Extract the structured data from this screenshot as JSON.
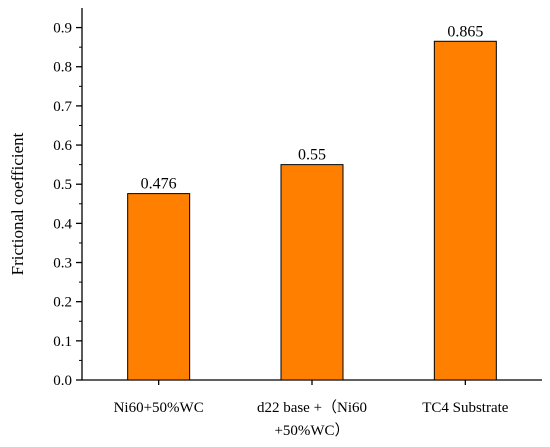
{
  "chart_data": {
    "type": "bar",
    "categories": [
      [
        "Ni60+50%WC"
      ],
      [
        "d22 base +（Ni60",
        "+50%WC）"
      ],
      [
        "TC4 Substrate"
      ]
    ],
    "values": [
      0.476,
      0.55,
      0.865
    ],
    "data_labels": [
      "0.476",
      "0.55",
      "0.865"
    ],
    "title": "",
    "xlabel": "",
    "ylabel": "Frictional coefficient",
    "ylim": [
      0,
      0.95
    ],
    "yticks": [
      0.0,
      0.1,
      0.2,
      0.3,
      0.4,
      0.5,
      0.6,
      0.7,
      0.8,
      0.9
    ],
    "ytick_labels": [
      "0.0",
      "0.1",
      "0.2",
      "0.3",
      "0.4",
      "0.5",
      "0.6",
      "0.7",
      "0.8",
      "0.9"
    ],
    "grid": false,
    "legend": "none",
    "colors": {
      "bar_fill": "#FF8000",
      "bar_stroke": "#000000",
      "axis": "#000000"
    }
  }
}
